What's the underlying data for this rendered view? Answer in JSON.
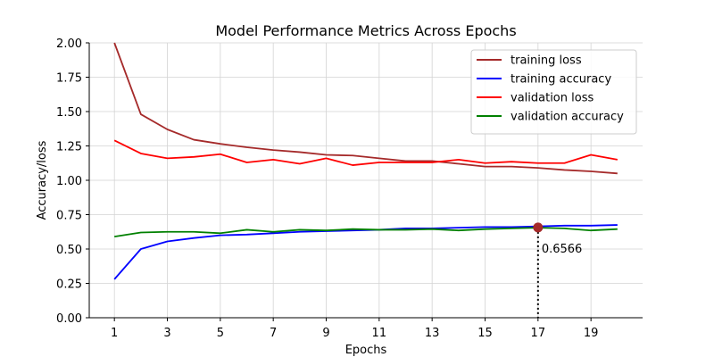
{
  "chart_data": {
    "type": "line",
    "title": "Model Performance Metrics Across Epochs",
    "xlabel": "Epochs",
    "ylabel": "Accuracy/loss",
    "x": [
      1,
      2,
      3,
      4,
      5,
      6,
      7,
      8,
      9,
      10,
      11,
      12,
      13,
      14,
      15,
      16,
      17,
      18,
      19,
      20
    ],
    "xticks": [
      1,
      3,
      5,
      7,
      9,
      11,
      13,
      15,
      17,
      19
    ],
    "yticks": [
      "0.00",
      "0.25",
      "0.50",
      "0.75",
      "1.00",
      "1.25",
      "1.50",
      "1.75",
      "2.00"
    ],
    "xlim": [
      0.05,
      20.95
    ],
    "ylim": [
      0,
      2.0
    ],
    "grid": true,
    "legend_position": "top-right",
    "series": [
      {
        "name": "training loss",
        "color": "#a52a2a",
        "values": [
          2.0,
          1.48,
          1.37,
          1.295,
          1.265,
          1.24,
          1.22,
          1.205,
          1.185,
          1.18,
          1.16,
          1.14,
          1.14,
          1.12,
          1.1,
          1.1,
          1.09,
          1.075,
          1.065,
          1.05
        ]
      },
      {
        "name": "training accuracy",
        "color": "#0000ff",
        "values": [
          0.28,
          0.5,
          0.555,
          0.58,
          0.6,
          0.605,
          0.615,
          0.625,
          0.63,
          0.635,
          0.64,
          0.65,
          0.65,
          0.655,
          0.66,
          0.66,
          0.665,
          0.67,
          0.67,
          0.675
        ]
      },
      {
        "name": "validation loss",
        "color": "#ff0000",
        "values": [
          1.29,
          1.195,
          1.16,
          1.17,
          1.19,
          1.13,
          1.15,
          1.12,
          1.16,
          1.11,
          1.13,
          1.13,
          1.13,
          1.15,
          1.125,
          1.135,
          1.125,
          1.125,
          1.185,
          1.15
        ]
      },
      {
        "name": "validation accuracy",
        "color": "#008000",
        "values": [
          0.59,
          0.62,
          0.625,
          0.625,
          0.615,
          0.64,
          0.625,
          0.64,
          0.635,
          0.645,
          0.64,
          0.64,
          0.645,
          0.635,
          0.645,
          0.65,
          0.655,
          0.65,
          0.635,
          0.645
        ]
      }
    ],
    "annotation": {
      "x": 17,
      "y": 0.6566,
      "label": "0.6566",
      "color": "#a52a2a"
    }
  }
}
